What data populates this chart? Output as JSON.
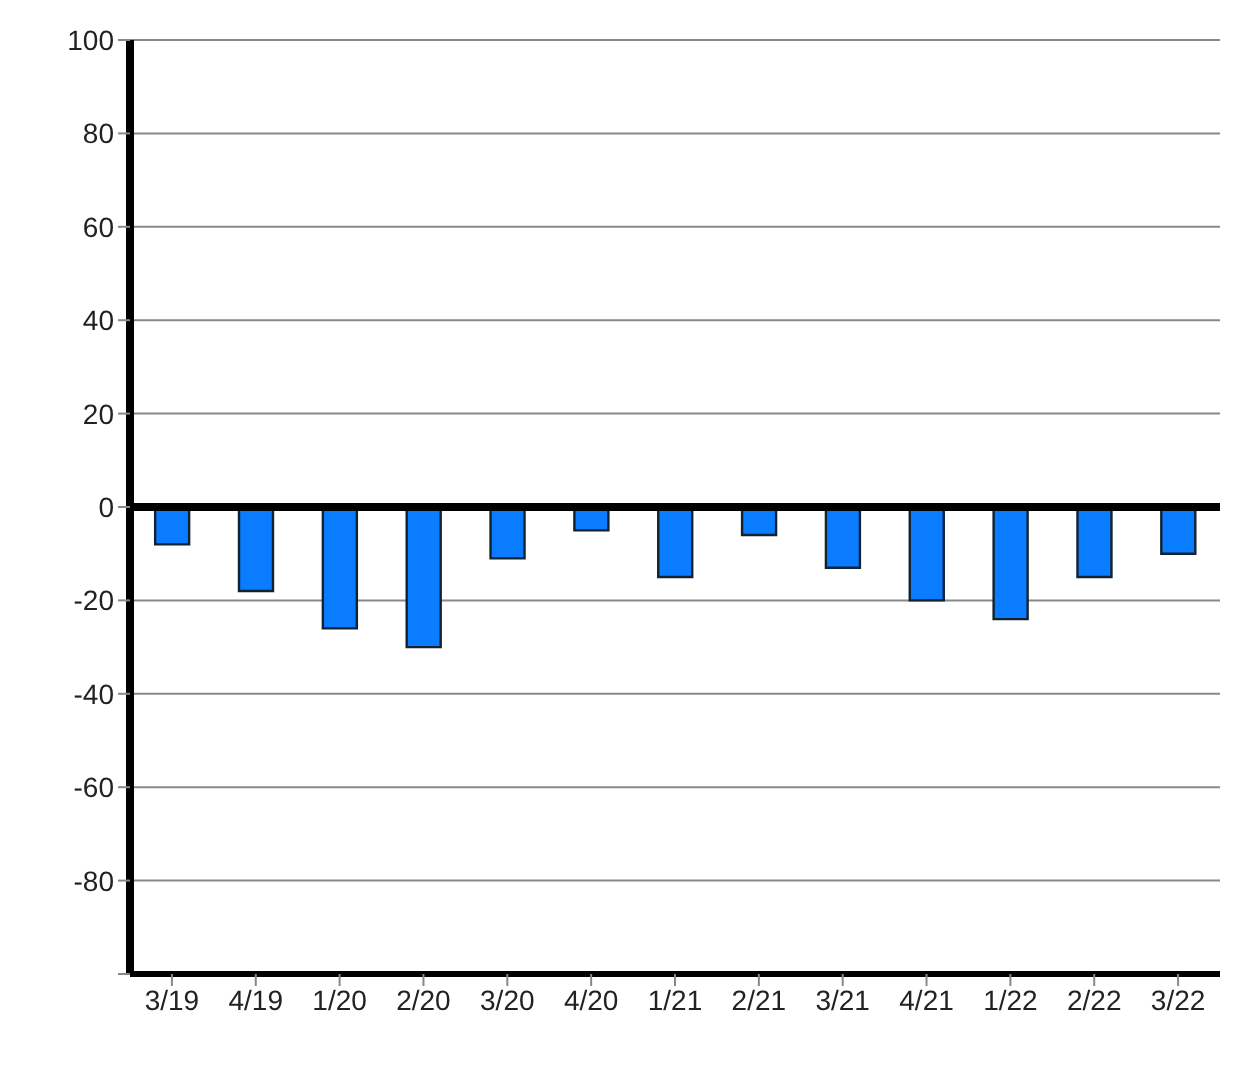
{
  "chart_data": {
    "type": "bar",
    "categories": [
      "3/19",
      "4/19",
      "1/20",
      "2/20",
      "3/20",
      "4/20",
      "1/21",
      "2/21",
      "3/21",
      "4/21",
      "1/22",
      "2/22",
      "3/22"
    ],
    "values": [
      -8,
      -18,
      -26,
      -30,
      -11,
      -5,
      -15,
      -6,
      -13,
      -20,
      -24,
      -15,
      -10
    ],
    "color": "#0a7cff",
    "ylim": [
      -100,
      100
    ],
    "yticks": [
      {
        "value": -100,
        "label": null
      },
      -80,
      -60,
      -40,
      -20,
      0,
      20,
      40,
      60,
      80,
      100
    ],
    "grid": "y",
    "ref_lines": [
      {
        "axis": "y",
        "value": 0,
        "color": "#000000"
      }
    ]
  }
}
